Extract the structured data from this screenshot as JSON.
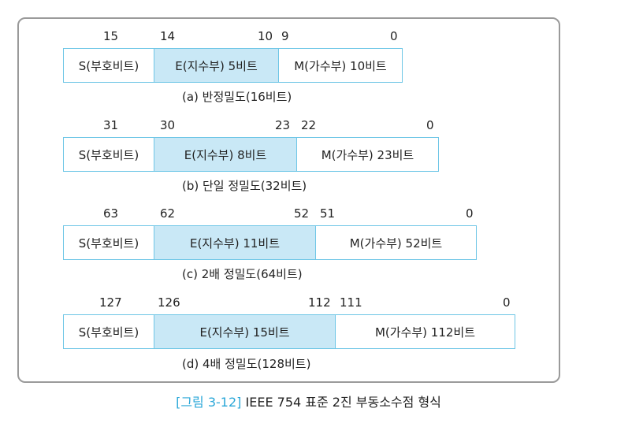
{
  "formats": [
    {
      "bits": [
        "15",
        "14",
        "10",
        "9",
        "0"
      ],
      "sign": "S(부호비트)",
      "exponent": "E(지수부) 5비트",
      "mantissa": "M(가수부) 10비트",
      "caption": "(a) 반정밀도(16비트)"
    },
    {
      "bits": [
        "31",
        "30",
        "23",
        "22",
        "0"
      ],
      "sign": "S(부호비트)",
      "exponent": "E(지수부) 8비트",
      "mantissa": "M(가수부) 23비트",
      "caption": "(b) 단일 정밀도(32비트)"
    },
    {
      "bits": [
        "63",
        "62",
        "52",
        "51",
        "0"
      ],
      "sign": "S(부호비트)",
      "exponent": "E(지수부) 11비트",
      "mantissa": "M(가수부) 52비트",
      "caption": "(c) 2배 정밀도(64비트)"
    },
    {
      "bits": [
        "127",
        "126",
        "112",
        "111",
        "0"
      ],
      "sign": "S(부호비트)",
      "exponent": "E(지수부) 15비트",
      "mantissa": "M(가수부) 112비트",
      "caption": "(d) 4배 정밀도(128비트)"
    }
  ],
  "figure": {
    "label": "[그림 3-12]",
    "title": "IEEE 754 표준 2진 부동소수점 형식"
  },
  "colors": {
    "cell_border": "#6ec6e6",
    "exponent_fill": "#c9e8f6",
    "figure_label": "#2aa7d8",
    "frame_border": "#9a9a9a"
  }
}
